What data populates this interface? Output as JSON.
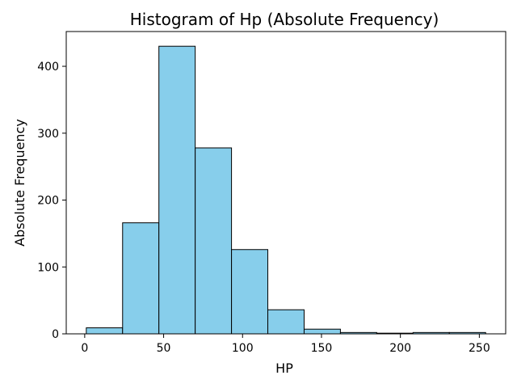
{
  "chart_data": {
    "type": "bar",
    "title": "Histogram of Hp (Absolute Frequency)",
    "xlabel": "HP",
    "ylabel": "Absolute Frequency",
    "xlim": [
      -11.7,
      266.7
    ],
    "ylim": [
      0,
      452
    ],
    "xticks": [
      0,
      50,
      100,
      150,
      200,
      250
    ],
    "yticks": [
      0,
      100,
      200,
      300,
      400
    ],
    "bin_edges": [
      1,
      24,
      47,
      70,
      93,
      116,
      139,
      162,
      185,
      208,
      231,
      254
    ],
    "values": [
      9,
      166,
      430,
      278,
      126,
      36,
      7,
      2,
      1,
      2,
      2
    ],
    "grid": false,
    "colors": {
      "bar_fill": "#87CEEB",
      "bar_edge": "#000000"
    }
  }
}
